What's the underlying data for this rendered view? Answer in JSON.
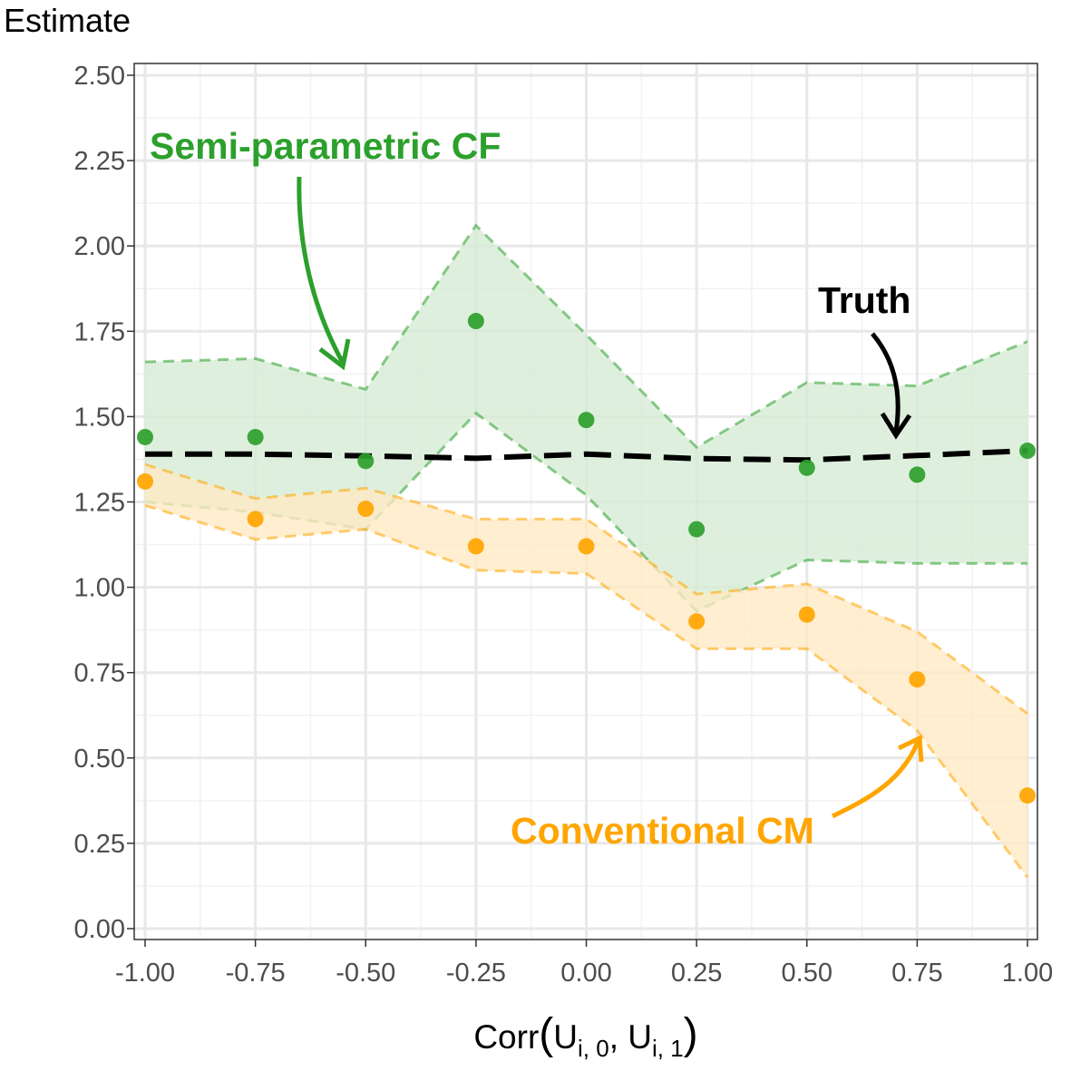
{
  "chart_data": {
    "type": "line",
    "ylabel": "Estimate",
    "xlabel": {
      "prefix": "Corr",
      "u1": "U",
      "u1_sub": "i, 0",
      "sep": ", ",
      "u2": "U",
      "u2_sub": "i, 1"
    },
    "xlim": [
      -1.0,
      1.0
    ],
    "ylim": [
      0.0,
      2.5
    ],
    "x_ticks": [
      "-1.00",
      "-0.75",
      "-0.50",
      "-0.25",
      "0.00",
      "0.25",
      "0.50",
      "0.75",
      "1.00"
    ],
    "y_ticks": [
      "0.00",
      "0.25",
      "0.50",
      "0.75",
      "1.00",
      "1.25",
      "1.50",
      "1.75",
      "2.00",
      "2.25",
      "2.50"
    ],
    "grid": true,
    "x": [
      -1.0,
      -0.75,
      -0.5,
      -0.25,
      0.0,
      0.25,
      0.5,
      0.75,
      1.0
    ],
    "series": [
      {
        "key": "semi",
        "color": "#2ca02c",
        "fill": "#d5ecd4",
        "estimates": [
          1.44,
          1.44,
          1.37,
          1.78,
          1.49,
          1.17,
          1.35,
          1.33,
          1.4
        ],
        "upper": [
          1.66,
          1.67,
          1.58,
          2.06,
          1.74,
          1.41,
          1.6,
          1.59,
          1.72
        ],
        "lower": [
          1.25,
          1.22,
          1.17,
          1.51,
          1.27,
          0.93,
          1.08,
          1.07,
          1.07
        ]
      },
      {
        "key": "conv",
        "color": "#ffa500",
        "fill": "#ffe9c3",
        "estimates": [
          1.31,
          1.2,
          1.23,
          1.12,
          1.12,
          0.9,
          0.92,
          0.73,
          0.39
        ],
        "upper": [
          1.36,
          1.26,
          1.29,
          1.2,
          1.2,
          0.98,
          1.01,
          0.87,
          0.63
        ],
        "lower": [
          1.24,
          1.14,
          1.17,
          1.05,
          1.04,
          0.82,
          0.82,
          0.58,
          0.15
        ]
      }
    ],
    "truth": {
      "color": "#000000",
      "values": [
        1.39,
        1.39,
        1.385,
        1.378,
        1.39,
        1.377,
        1.373,
        1.386,
        1.4
      ]
    },
    "annotations": {
      "semi": "Semi-parametric CF",
      "truth": "Truth",
      "conv": "Conventional CM"
    }
  }
}
